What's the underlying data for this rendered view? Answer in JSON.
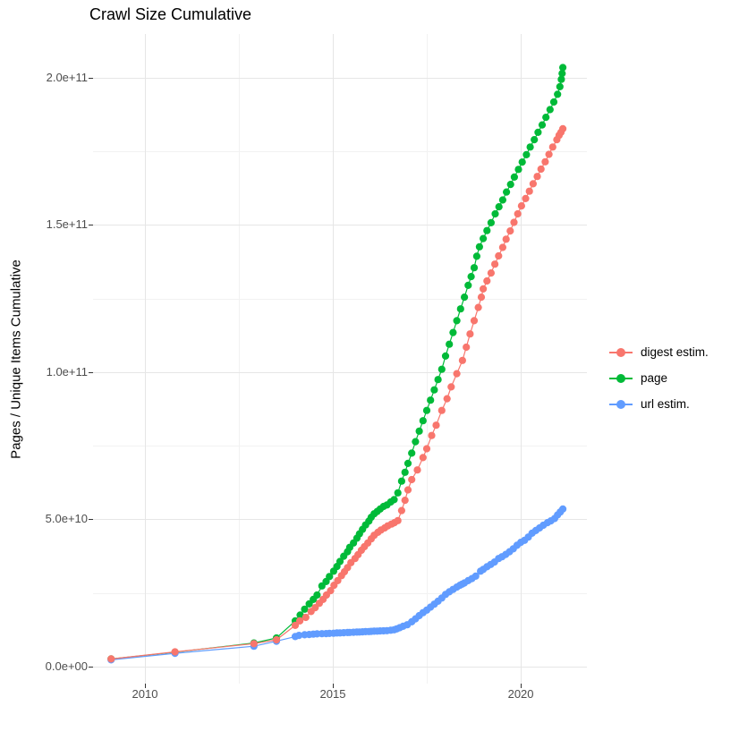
{
  "title": "Crawl Size Cumulative",
  "y_axis_title": "Pages / Unique Items Cumulative",
  "legend": {
    "items": [
      {
        "label": "digest estim.",
        "series": "digest",
        "color": "#F8766D"
      },
      {
        "label": "page",
        "series": "page",
        "color": "#00BA38"
      },
      {
        "label": "url estim.",
        "series": "url",
        "color": "#619CFF"
      }
    ]
  },
  "chart_data": {
    "type": "line",
    "marker": "point",
    "title": "Crawl Size Cumulative",
    "xlabel": "",
    "ylabel": "Pages / Unique Items Cumulative",
    "value_unit": "1e9 (billions of pages / unique items)",
    "xlim": [
      2008.62,
      2021.76
    ],
    "ylim_e9": [
      -5.8,
      214.9
    ],
    "grid": "on",
    "legend_position": "right",
    "x_major_ticks": [
      2010,
      2015,
      2020
    ],
    "x_major_labels": [
      "2010",
      "2015",
      "2020"
    ],
    "x_minor_ticks": [
      2012.5,
      2017.5
    ],
    "y_major_ticks_e9": [
      0,
      50,
      100,
      150,
      200
    ],
    "y_major_labels": [
      "0.0e+00",
      "5.0e+10",
      "1.0e+11",
      "1.5e+11",
      "2.0e+11"
    ],
    "y_minor_ticks_e9": [
      25,
      75,
      125,
      175
    ],
    "series": [
      {
        "name": "page",
        "color": "#00BA38",
        "points": [
          [
            2009.1,
            2.6
          ],
          [
            2010.8,
            4.9
          ],
          [
            2012.9,
            8.0
          ],
          [
            2013.5,
            9.7
          ],
          [
            2014.0,
            15.5
          ],
          [
            2014.13,
            17.5
          ],
          [
            2014.25,
            19.5
          ],
          [
            2014.37,
            21.3
          ],
          [
            2014.48,
            22.8
          ],
          [
            2014.58,
            24.3
          ],
          [
            2014.71,
            27.4
          ],
          [
            2014.82,
            28.9
          ],
          [
            2014.91,
            30.6
          ],
          [
            2015.02,
            32.4
          ],
          [
            2015.11,
            34.0
          ],
          [
            2015.19,
            35.7
          ],
          [
            2015.29,
            37.5
          ],
          [
            2015.39,
            39.0
          ],
          [
            2015.45,
            40.5
          ],
          [
            2015.55,
            42.0
          ],
          [
            2015.64,
            43.6
          ],
          [
            2015.71,
            45.1
          ],
          [
            2015.79,
            46.6
          ],
          [
            2015.87,
            48.1
          ],
          [
            2015.96,
            49.4
          ],
          [
            2016.02,
            50.7
          ],
          [
            2016.1,
            51.9
          ],
          [
            2016.18,
            52.7
          ],
          [
            2016.26,
            53.5
          ],
          [
            2016.35,
            54.4
          ],
          [
            2016.44,
            54.9
          ],
          [
            2016.54,
            55.9
          ],
          [
            2016.63,
            56.7
          ],
          [
            2016.73,
            59.0
          ],
          [
            2016.83,
            63.0
          ],
          [
            2016.92,
            66.0
          ],
          [
            2017.0,
            69.0
          ],
          [
            2017.1,
            72.5
          ],
          [
            2017.2,
            76.4
          ],
          [
            2017.3,
            80.0
          ],
          [
            2017.4,
            83.5
          ],
          [
            2017.5,
            87.0
          ],
          [
            2017.6,
            90.5
          ],
          [
            2017.7,
            94.0
          ],
          [
            2017.8,
            97.5
          ],
          [
            2017.9,
            101.0
          ],
          [
            2018.0,
            105.5
          ],
          [
            2018.1,
            109.5
          ],
          [
            2018.2,
            113.5
          ],
          [
            2018.3,
            117.5
          ],
          [
            2018.4,
            121.5
          ],
          [
            2018.5,
            125.5
          ],
          [
            2018.6,
            129.5
          ],
          [
            2018.68,
            132.5
          ],
          [
            2018.76,
            135.5
          ],
          [
            2018.83,
            139.4
          ],
          [
            2018.9,
            142.6
          ],
          [
            2019.0,
            145.4
          ],
          [
            2019.1,
            148.1
          ],
          [
            2019.21,
            150.8
          ],
          [
            2019.32,
            153.8
          ],
          [
            2019.42,
            156.2
          ],
          [
            2019.52,
            158.5
          ],
          [
            2019.62,
            161.2
          ],
          [
            2019.73,
            163.8
          ],
          [
            2019.83,
            166.3
          ],
          [
            2019.94,
            168.9
          ],
          [
            2020.04,
            171.4
          ],
          [
            2020.15,
            173.9
          ],
          [
            2020.25,
            176.5
          ],
          [
            2020.36,
            179.0
          ],
          [
            2020.46,
            181.5
          ],
          [
            2020.57,
            184.0
          ],
          [
            2020.67,
            186.6
          ],
          [
            2020.78,
            189.2
          ],
          [
            2020.88,
            191.8
          ],
          [
            2020.98,
            194.4
          ],
          [
            2021.04,
            197.0
          ],
          [
            2021.08,
            199.5
          ],
          [
            2021.1,
            201.5
          ],
          [
            2021.12,
            203.5
          ]
        ]
      },
      {
        "name": "url",
        "color": "#619CFF",
        "points": [
          [
            2009.1,
            2.3
          ],
          [
            2010.8,
            4.5
          ],
          [
            2012.9,
            6.9
          ],
          [
            2013.5,
            8.6
          ],
          [
            2014.0,
            10.2
          ],
          [
            2014.1,
            10.6
          ],
          [
            2014.25,
            10.8
          ],
          [
            2014.37,
            10.9
          ],
          [
            2014.48,
            11.0
          ],
          [
            2014.58,
            11.1
          ],
          [
            2014.71,
            11.15
          ],
          [
            2014.82,
            11.2
          ],
          [
            2014.91,
            11.25
          ],
          [
            2015.02,
            11.3
          ],
          [
            2015.11,
            11.4
          ],
          [
            2015.19,
            11.45
          ],
          [
            2015.29,
            11.5
          ],
          [
            2015.39,
            11.55
          ],
          [
            2015.45,
            11.6
          ],
          [
            2015.55,
            11.65
          ],
          [
            2015.64,
            11.7
          ],
          [
            2015.71,
            11.75
          ],
          [
            2015.79,
            11.8
          ],
          [
            2015.87,
            11.85
          ],
          [
            2015.96,
            11.9
          ],
          [
            2016.02,
            11.95
          ],
          [
            2016.1,
            12.0
          ],
          [
            2016.18,
            12.05
          ],
          [
            2016.26,
            12.1
          ],
          [
            2016.35,
            12.15
          ],
          [
            2016.44,
            12.2
          ],
          [
            2016.54,
            12.35
          ],
          [
            2016.63,
            12.5
          ],
          [
            2016.7,
            12.8
          ],
          [
            2016.78,
            13.2
          ],
          [
            2016.87,
            13.7
          ],
          [
            2016.98,
            14.2
          ],
          [
            2017.1,
            15.2
          ],
          [
            2017.2,
            16.2
          ],
          [
            2017.3,
            17.3
          ],
          [
            2017.4,
            18.3
          ],
          [
            2017.5,
            19.2
          ],
          [
            2017.6,
            20.2
          ],
          [
            2017.7,
            21.2
          ],
          [
            2017.8,
            22.2
          ],
          [
            2017.9,
            23.3
          ],
          [
            2018.0,
            24.5
          ],
          [
            2018.1,
            25.4
          ],
          [
            2018.2,
            26.2
          ],
          [
            2018.3,
            27.0
          ],
          [
            2018.38,
            27.6
          ],
          [
            2018.44,
            28.0
          ],
          [
            2018.5,
            28.4
          ],
          [
            2018.6,
            29.2
          ],
          [
            2018.7,
            29.9
          ],
          [
            2018.8,
            30.7
          ],
          [
            2018.93,
            32.4
          ],
          [
            2019.0,
            33.0
          ],
          [
            2019.1,
            33.9
          ],
          [
            2019.2,
            34.7
          ],
          [
            2019.3,
            35.5
          ],
          [
            2019.41,
            36.7
          ],
          [
            2019.5,
            37.3
          ],
          [
            2019.6,
            38.1
          ],
          [
            2019.7,
            39.0
          ],
          [
            2019.8,
            40.0
          ],
          [
            2019.9,
            41.2
          ],
          [
            2020.0,
            42.2
          ],
          [
            2020.1,
            42.9
          ],
          [
            2020.2,
            44.0
          ],
          [
            2020.3,
            45.3
          ],
          [
            2020.4,
            46.2
          ],
          [
            2020.5,
            47.1
          ],
          [
            2020.6,
            48.0
          ],
          [
            2020.71,
            48.9
          ],
          [
            2020.8,
            49.5
          ],
          [
            2020.9,
            50.3
          ],
          [
            2020.98,
            51.5
          ],
          [
            2021.05,
            52.5
          ],
          [
            2021.12,
            53.5
          ]
        ]
      },
      {
        "name": "digest",
        "color": "#F8766D",
        "points": [
          [
            2009.1,
            2.6
          ],
          [
            2010.8,
            5.0
          ],
          [
            2012.9,
            7.8
          ],
          [
            2013.5,
            9.1
          ],
          [
            2014.0,
            14.0
          ],
          [
            2014.12,
            15.5
          ],
          [
            2014.28,
            16.7
          ],
          [
            2014.42,
            18.7
          ],
          [
            2014.53,
            20.0
          ],
          [
            2014.64,
            21.5
          ],
          [
            2014.74,
            22.8
          ],
          [
            2014.83,
            24.3
          ],
          [
            2014.94,
            25.8
          ],
          [
            2015.03,
            27.6
          ],
          [
            2015.13,
            29.2
          ],
          [
            2015.23,
            30.9
          ],
          [
            2015.31,
            32.2
          ],
          [
            2015.39,
            33.6
          ],
          [
            2015.48,
            35.3
          ],
          [
            2015.59,
            36.7
          ],
          [
            2015.67,
            38.0
          ],
          [
            2015.76,
            39.5
          ],
          [
            2015.84,
            40.7
          ],
          [
            2015.93,
            42.0
          ],
          [
            2016.02,
            43.4
          ],
          [
            2016.1,
            44.6
          ],
          [
            2016.2,
            45.6
          ],
          [
            2016.28,
            46.4
          ],
          [
            2016.38,
            47.1
          ],
          [
            2016.46,
            47.8
          ],
          [
            2016.56,
            48.4
          ],
          [
            2016.64,
            48.9
          ],
          [
            2016.73,
            49.6
          ],
          [
            2016.83,
            53.0
          ],
          [
            2016.92,
            56.5
          ],
          [
            2017.0,
            60.0
          ],
          [
            2017.1,
            63.5
          ],
          [
            2017.25,
            66.8
          ],
          [
            2017.4,
            71.0
          ],
          [
            2017.5,
            74.0
          ],
          [
            2017.63,
            78.5
          ],
          [
            2017.75,
            82.0
          ],
          [
            2017.9,
            87.0
          ],
          [
            2018.04,
            91.0
          ],
          [
            2018.15,
            95.0
          ],
          [
            2018.3,
            99.5
          ],
          [
            2018.45,
            104.0
          ],
          [
            2018.55,
            108.5
          ],
          [
            2018.65,
            113.0
          ],
          [
            2018.76,
            117.5
          ],
          [
            2018.87,
            122.0
          ],
          [
            2018.95,
            125.5
          ],
          [
            2019.0,
            128.3
          ],
          [
            2019.1,
            131.0
          ],
          [
            2019.21,
            133.7
          ],
          [
            2019.31,
            136.7
          ],
          [
            2019.41,
            139.5
          ],
          [
            2019.52,
            142.4
          ],
          [
            2019.61,
            145.2
          ],
          [
            2019.72,
            148.0
          ],
          [
            2019.82,
            150.9
          ],
          [
            2019.92,
            153.8
          ],
          [
            2020.02,
            156.5
          ],
          [
            2020.13,
            159.0
          ],
          [
            2020.23,
            161.5
          ],
          [
            2020.33,
            164.0
          ],
          [
            2020.44,
            166.5
          ],
          [
            2020.54,
            169.0
          ],
          [
            2020.65,
            171.5
          ],
          [
            2020.75,
            174.0
          ],
          [
            2020.85,
            176.5
          ],
          [
            2020.96,
            179.0
          ],
          [
            2021.02,
            180.5
          ],
          [
            2021.07,
            181.5
          ],
          [
            2021.12,
            182.7
          ]
        ]
      }
    ]
  }
}
